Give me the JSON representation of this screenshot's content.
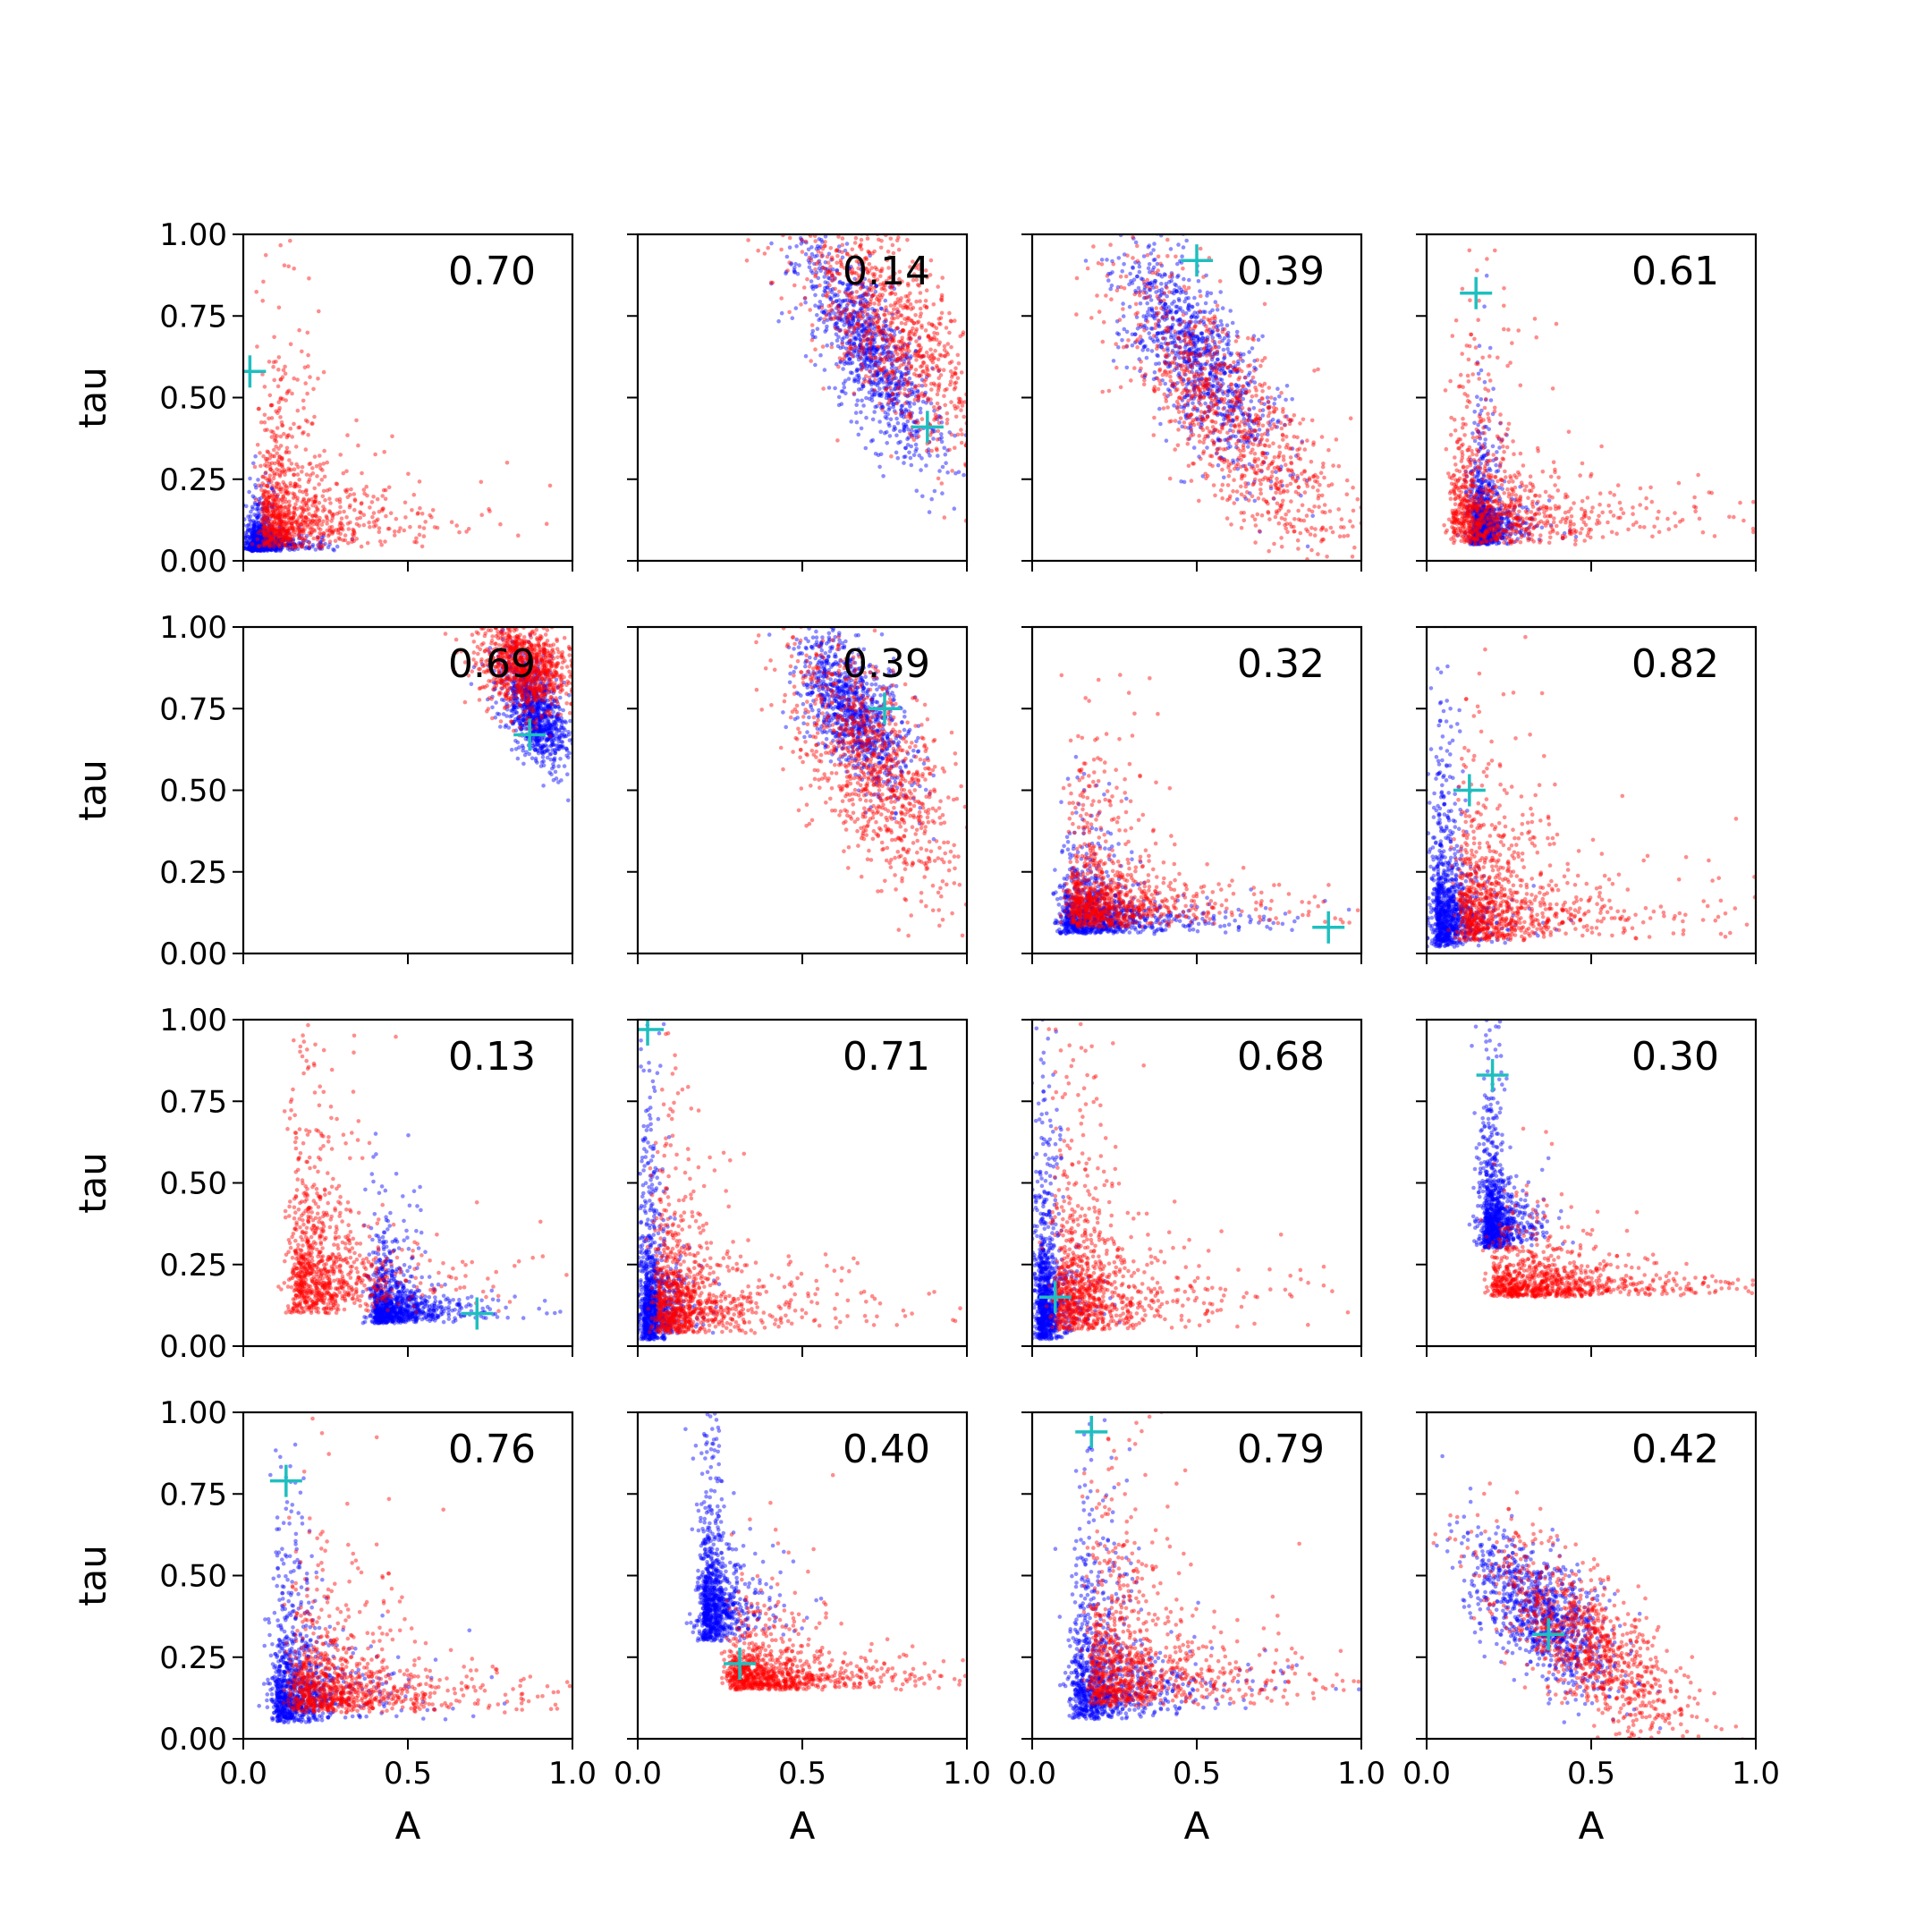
{
  "chart_data": {
    "type": "scatter",
    "layout": {
      "rows": 4,
      "cols": 4
    },
    "shared_axes": {
      "xlabel": "A",
      "ylabel": "tau",
      "xlim": [
        0.0,
        1.0
      ],
      "ylim": [
        0.0,
        1.0
      ],
      "xticks": [
        "0.0",
        "0.5",
        "1.0"
      ],
      "yticks": [
        "0.00",
        "0.25",
        "0.50",
        "0.75",
        "1.00"
      ],
      "grid": false,
      "legend": "none"
    },
    "series_colors": {
      "blue": "#0000ff",
      "red": "#ff0000",
      "marker": "#1fbfbf"
    },
    "panels": [
      {
        "label": "0.70",
        "marker": [
          0.02,
          0.58
        ],
        "blue": {
          "type": "L",
          "ax": 0.03,
          "ay": 0.03,
          "sx": 0.05,
          "sy": 0.05
        },
        "red": {
          "type": "L",
          "ax": 0.06,
          "ay": 0.04,
          "sx": 0.18,
          "sy": 0.22
        }
      },
      {
        "label": "0.14",
        "marker": [
          0.88,
          0.41
        ],
        "blue": {
          "type": "band",
          "cx": 0.7,
          "cy": 0.65,
          "dx": 0.16,
          "dy": -0.3,
          "sp": 0.06,
          "sx": 0.06,
          "sy": 0.03
        },
        "red": {
          "type": "band",
          "cx": 0.77,
          "cy": 0.72,
          "dx": 0.22,
          "dy": -0.35,
          "sp": 0.09,
          "sx": 0.09,
          "sy": 0.05
        }
      },
      {
        "label": "0.39",
        "marker": [
          0.5,
          0.92
        ],
        "blue": {
          "type": "band",
          "cx": 0.5,
          "cy": 0.62,
          "dx": 0.18,
          "dy": -0.32,
          "sp": 0.07,
          "sx": 0.08,
          "sy": 0.04
        },
        "red": {
          "type": "band",
          "cx": 0.6,
          "cy": 0.45,
          "dx": 0.3,
          "dy": -0.4,
          "sp": 0.09,
          "sx": 0.1,
          "sy": 0.05
        }
      },
      {
        "label": "0.61",
        "marker": [
          0.15,
          0.82
        ],
        "blue": {
          "type": "L",
          "ax": 0.15,
          "ay": 0.05,
          "sx": 0.05,
          "sy": 0.12
        },
        "red": {
          "type": "L",
          "ax": 0.08,
          "ay": 0.05,
          "sx": 0.25,
          "sy": 0.2
        }
      },
      {
        "label": "0.69",
        "marker": [
          0.87,
          0.67
        ],
        "blue": {
          "type": "band",
          "cx": 0.88,
          "cy": 0.75,
          "dx": 0.06,
          "dy": -0.15,
          "sp": 0.04,
          "sx": 0.05,
          "sy": 0.02
        },
        "red": {
          "type": "band",
          "cx": 0.85,
          "cy": 0.88,
          "dx": 0.1,
          "dy": -0.12,
          "sp": 0.06,
          "sx": 0.08,
          "sy": 0.04
        }
      },
      {
        "label": "0.39",
        "marker": [
          0.75,
          0.75
        ],
        "blue": {
          "type": "band",
          "cx": 0.65,
          "cy": 0.75,
          "dx": 0.12,
          "dy": -0.22,
          "sp": 0.06,
          "sx": 0.06,
          "sy": 0.03
        },
        "red": {
          "type": "band",
          "cx": 0.72,
          "cy": 0.58,
          "dx": 0.18,
          "dy": -0.35,
          "sp": 0.09,
          "sx": 0.08,
          "sy": 0.04
        }
      },
      {
        "label": "0.32",
        "marker": [
          0.9,
          0.08
        ],
        "blue": {
          "type": "L",
          "ax": 0.1,
          "ay": 0.06,
          "sx": 0.18,
          "sy": 0.1
        },
        "red": {
          "type": "L",
          "ax": 0.12,
          "ay": 0.08,
          "sx": 0.22,
          "sy": 0.16
        }
      },
      {
        "label": "0.82",
        "marker": [
          0.13,
          0.5
        ],
        "blue": {
          "type": "L",
          "ax": 0.03,
          "ay": 0.02,
          "sx": 0.06,
          "sy": 0.22
        },
        "red": {
          "type": "L",
          "ax": 0.1,
          "ay": 0.04,
          "sx": 0.25,
          "sy": 0.2
        }
      },
      {
        "label": "0.13",
        "marker": [
          0.71,
          0.1
        ],
        "blue": {
          "type": "L",
          "ax": 0.4,
          "ay": 0.07,
          "sx": 0.12,
          "sy": 0.1
        },
        "red": {
          "type": "L",
          "ax": 0.15,
          "ay": 0.1,
          "sx": 0.18,
          "sy": 0.25
        }
      },
      {
        "label": "0.71",
        "marker": [
          0.03,
          0.97
        ],
        "blue": {
          "type": "L",
          "ax": 0.02,
          "ay": 0.02,
          "sx": 0.04,
          "sy": 0.22
        },
        "red": {
          "type": "L",
          "ax": 0.06,
          "ay": 0.04,
          "sx": 0.18,
          "sy": 0.2
        }
      },
      {
        "label": "0.68",
        "marker": [
          0.07,
          0.15
        ],
        "blue": {
          "type": "L",
          "ax": 0.02,
          "ay": 0.02,
          "sx": 0.04,
          "sy": 0.25
        },
        "red": {
          "type": "L",
          "ax": 0.08,
          "ay": 0.05,
          "sx": 0.18,
          "sy": 0.25
        }
      },
      {
        "label": "0.30",
        "marker": [
          0.2,
          0.83
        ],
        "blue": {
          "type": "L",
          "ax": 0.18,
          "ay": 0.3,
          "sx": 0.05,
          "sy": 0.18
        },
        "red": {
          "type": "L",
          "ax": 0.2,
          "ay": 0.15,
          "sx": 0.35,
          "sy": 0.08
        }
      },
      {
        "label": "0.76",
        "marker": [
          0.13,
          0.79
        ],
        "blue": {
          "type": "L",
          "ax": 0.1,
          "ay": 0.05,
          "sx": 0.12,
          "sy": 0.2
        },
        "red": {
          "type": "L",
          "ax": 0.15,
          "ay": 0.08,
          "sx": 0.3,
          "sy": 0.15
        }
      },
      {
        "label": "0.40",
        "marker": [
          0.31,
          0.23
        ],
        "blue": {
          "type": "L",
          "ax": 0.2,
          "ay": 0.3,
          "sx": 0.06,
          "sy": 0.25
        },
        "red": {
          "type": "L",
          "ax": 0.28,
          "ay": 0.15,
          "sx": 0.25,
          "sy": 0.1
        }
      },
      {
        "label": "0.79",
        "marker": [
          0.18,
          0.94
        ],
        "blue": {
          "type": "L",
          "ax": 0.13,
          "ay": 0.06,
          "sx": 0.15,
          "sy": 0.22
        },
        "red": {
          "type": "L",
          "ax": 0.18,
          "ay": 0.1,
          "sx": 0.25,
          "sy": 0.22
        }
      },
      {
        "label": "0.42",
        "marker": [
          0.37,
          0.32
        ],
        "blue": {
          "type": "band",
          "cx": 0.35,
          "cy": 0.38,
          "dx": 0.18,
          "dy": -0.2,
          "sp": 0.07,
          "sx": 0.08,
          "sy": 0.05
        },
        "red": {
          "type": "band",
          "cx": 0.48,
          "cy": 0.3,
          "dx": 0.25,
          "dy": -0.25,
          "sp": 0.08,
          "sx": 0.1,
          "sy": 0.05
        }
      }
    ]
  }
}
